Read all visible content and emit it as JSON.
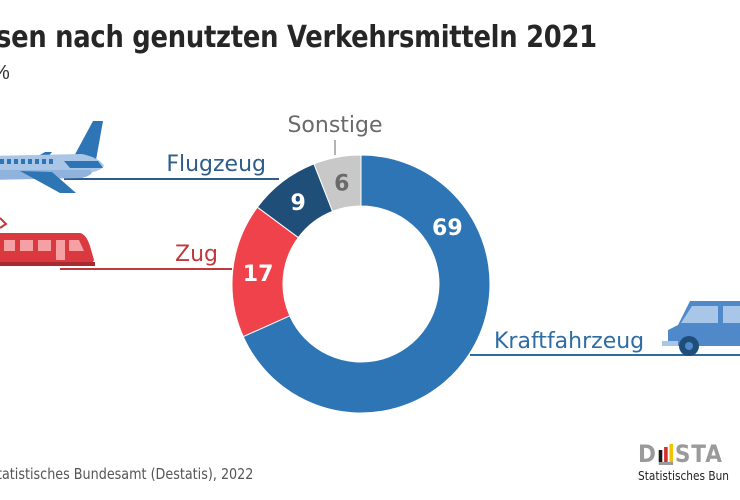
{
  "header": {
    "title": "sen nach genutzten Verkehrsmitteln 2021",
    "subtitle": "%"
  },
  "footer": {
    "source": "tatistisches Bundesamt (Destatis), 2022",
    "logo_word_left": "D",
    "logo_word_right": "STA",
    "logo_subtitle": "Statistisches Bun"
  },
  "colors": {
    "kraftfahrzeug": "#2e75b6",
    "zug": "#f0424a",
    "flugzeug": "#1f4e79",
    "sonstige": "#c8c8c8",
    "label_blue": "#2e6da4",
    "label_red": "#c0393b",
    "label_gray": "#6a6a6a"
  },
  "chart_data": {
    "type": "pie",
    "variant": "donut",
    "title": "sen nach genutzten Verkehrsmitteln 2021",
    "unit": "%",
    "start": "top",
    "direction": "clockwise",
    "slices": [
      {
        "label": "Kraftfahrzeug",
        "value": 69,
        "icon": "car-icon"
      },
      {
        "label": "Zug",
        "value": 17,
        "icon": "train-icon"
      },
      {
        "label": "Flugzeug",
        "value": 9,
        "icon": "airplane-icon"
      },
      {
        "label": "Sonstige",
        "value": 6,
        "icon": ""
      }
    ]
  }
}
